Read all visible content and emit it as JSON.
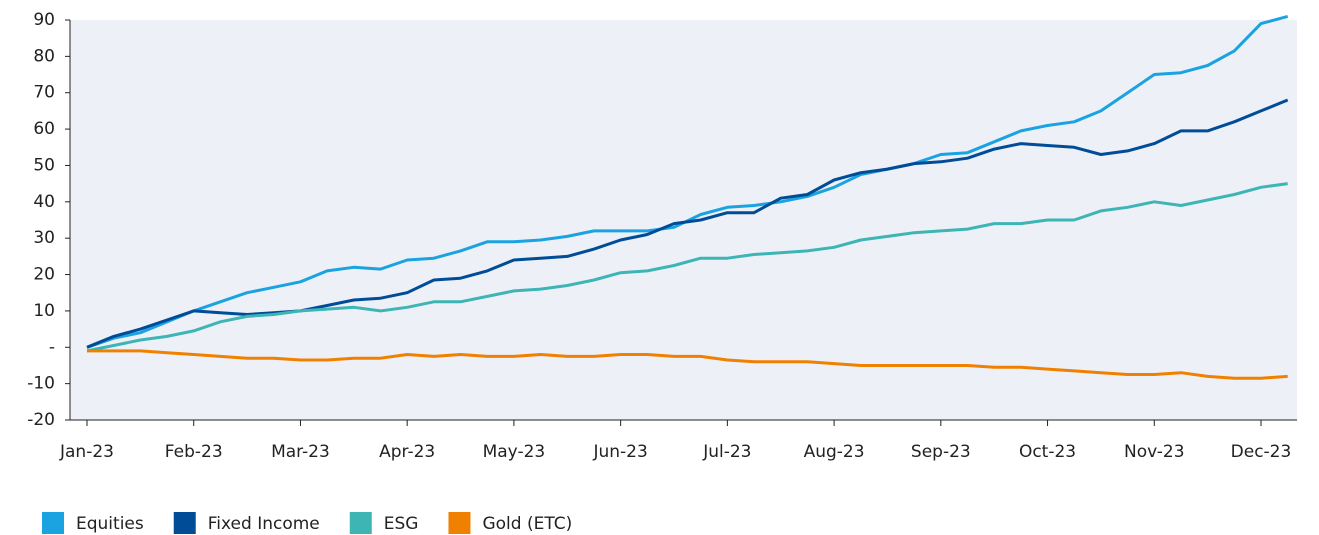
{
  "chart_data": {
    "type": "line",
    "categories": [
      "Jan-23",
      null,
      null,
      null,
      "Feb-23",
      null,
      null,
      null,
      "Mar-23",
      null,
      null,
      null,
      "Apr-23",
      null,
      null,
      null,
      "May-23",
      null,
      null,
      null,
      "Jun-23",
      null,
      null,
      null,
      "Jul-23",
      null,
      null,
      null,
      "Aug-23",
      null,
      null,
      null,
      "Sep-23",
      null,
      null,
      null,
      "Oct-23",
      null,
      null,
      null,
      "Nov-23",
      null,
      null,
      null,
      "Dec-23",
      null
    ],
    "series": [
      {
        "name": "Equities",
        "color": "#1aa3e0",
        "values": [
          0,
          2.5,
          4,
          7,
          10,
          12.5,
          15,
          16.5,
          18,
          21,
          22,
          21.5,
          24,
          24.5,
          26.5,
          29,
          29,
          29.5,
          30.5,
          32,
          32,
          32,
          33,
          36.5,
          38.5,
          39,
          40,
          41.5,
          44,
          47.5,
          49,
          50.5,
          53,
          53.5,
          56.5,
          59.5,
          61,
          62,
          65,
          70,
          75,
          75.5,
          77.5,
          81.5,
          89,
          91
        ]
      },
      {
        "name": "Fixed Income",
        "color": "#004c97",
        "values": [
          0,
          3,
          5,
          7.5,
          10,
          9.5,
          9,
          9.5,
          10,
          11.5,
          13,
          13.5,
          15,
          18.5,
          19,
          21,
          24,
          24.5,
          25,
          27,
          29.5,
          31,
          34,
          35,
          37,
          37,
          41,
          42,
          46,
          48,
          49,
          50.5,
          51,
          52,
          54.5,
          56,
          55.5,
          55,
          53,
          54,
          56,
          59.5,
          59.5,
          62,
          65,
          68
        ]
      },
      {
        "name": "ESG",
        "color": "#3db5b5",
        "values": [
          -1,
          0.5,
          2,
          3,
          4.5,
          7,
          8.5,
          9,
          10,
          10.5,
          11,
          10,
          11,
          12.5,
          12.5,
          14,
          15.5,
          16,
          17,
          18.5,
          20.5,
          21,
          22.5,
          24.5,
          24.5,
          25.5,
          26,
          26.5,
          27.5,
          29.5,
          30.5,
          31.5,
          32,
          32.5,
          34,
          34,
          35,
          35,
          37.5,
          38.5,
          40,
          39,
          40.5,
          42,
          44,
          45
        ]
      },
      {
        "name": "Gold (ETC)",
        "color": "#f08000",
        "values": [
          -1,
          -1,
          -1,
          -1.5,
          -2,
          -2.5,
          -3,
          -3,
          -3.5,
          -3.5,
          -3,
          -3,
          -2,
          -2.5,
          -2,
          -2.5,
          -2.5,
          -2,
          -2.5,
          -2.5,
          -2,
          -2,
          -2.5,
          -2.5,
          -3.5,
          -4,
          -4,
          -4,
          -4.5,
          -5,
          -5,
          -5,
          -5,
          -5,
          -5.5,
          -5.5,
          -6,
          -6.5,
          -7,
          -7.5,
          -7.5,
          -7,
          -8,
          -8.5,
          -8.5,
          -8
        ]
      }
    ],
    "ylim": [
      -20,
      90
    ],
    "yticks": [
      -20,
      -10,
      {
        "value": 0,
        "label": "-"
      },
      10,
      20,
      30,
      40,
      50,
      60,
      70,
      80,
      90
    ],
    "legend": "bottom-left"
  }
}
